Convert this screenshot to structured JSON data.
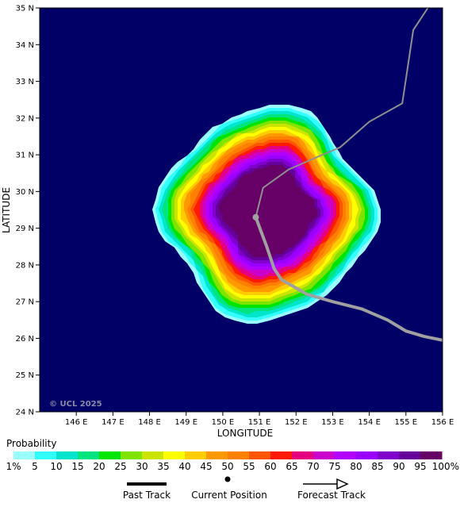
{
  "map": {
    "background_color": "#000066",
    "lon_range": [
      145,
      156
    ],
    "lat_range": [
      24,
      35
    ],
    "lon_ticks": [
      "146 E",
      "147 E",
      "148 E",
      "149 E",
      "150 E",
      "151 E",
      "152 E",
      "153 E",
      "154 E",
      "155 E",
      "156 E"
    ],
    "lat_ticks": [
      "24 N",
      "25 N",
      "26 N",
      "27 N",
      "28 N",
      "29 N",
      "30 N",
      "31 N",
      "32 N",
      "33 N",
      "34 N",
      "35 N"
    ],
    "xlabel": "LONGITUDE",
    "ylabel": "LATITUDE",
    "watermark": "© UCL 2025"
  },
  "storm": {
    "current_position": {
      "lon": 150.9,
      "lat": 29.3
    },
    "probability_center": {
      "lon": 151.25,
      "lat": 29.5
    },
    "outer_radius_deg": 2.85,
    "inner_radius_deg": 1.2
  },
  "tracks": {
    "past_color": "#a0a0a0",
    "forecast_color": "#909090",
    "past": [
      {
        "lon": 150.9,
        "lat": 29.3
      },
      {
        "lon": 151.2,
        "lat": 28.5
      },
      {
        "lon": 151.4,
        "lat": 27.9
      },
      {
        "lon": 151.6,
        "lat": 27.6
      },
      {
        "lon": 152.3,
        "lat": 27.2
      },
      {
        "lon": 153.0,
        "lat": 27.0
      },
      {
        "lon": 153.8,
        "lat": 26.8
      },
      {
        "lon": 154.5,
        "lat": 26.5
      },
      {
        "lon": 155.0,
        "lat": 26.2
      },
      {
        "lon": 155.5,
        "lat": 26.05
      },
      {
        "lon": 156.0,
        "lat": 25.95
      }
    ],
    "forecast": [
      {
        "lon": 150.9,
        "lat": 29.3
      },
      {
        "lon": 151.1,
        "lat": 30.1
      },
      {
        "lon": 151.8,
        "lat": 30.6
      },
      {
        "lon": 152.6,
        "lat": 30.95
      },
      {
        "lon": 153.2,
        "lat": 31.2
      },
      {
        "lon": 154.0,
        "lat": 31.9
      },
      {
        "lon": 154.9,
        "lat": 32.4
      },
      {
        "lon": 155.2,
        "lat": 34.4
      },
      {
        "lon": 155.6,
        "lat": 35.0
      }
    ]
  },
  "legend": {
    "title": "Probability",
    "labels": [
      "1%",
      "5",
      "10",
      "15",
      "20",
      "25",
      "30",
      "35",
      "40",
      "45",
      "50",
      "55",
      "60",
      "65",
      "70",
      "75",
      "80",
      "85",
      "90",
      "95",
      "100%"
    ],
    "colors": [
      "#99ffff",
      "#33ffff",
      "#00e5cc",
      "#00e57f",
      "#00e500",
      "#7fe500",
      "#cce500",
      "#ffff00",
      "#ffcc00",
      "#ff9900",
      "#ff7f00",
      "#ff5500",
      "#ff1a00",
      "#e5007f",
      "#cc00cc",
      "#b200ff",
      "#9900ff",
      "#7f00cc",
      "#66009a",
      "#660066"
    ],
    "past_track_label": "Past Track",
    "current_position_label": "Current Position",
    "forecast_track_label": "Forecast Track"
  }
}
